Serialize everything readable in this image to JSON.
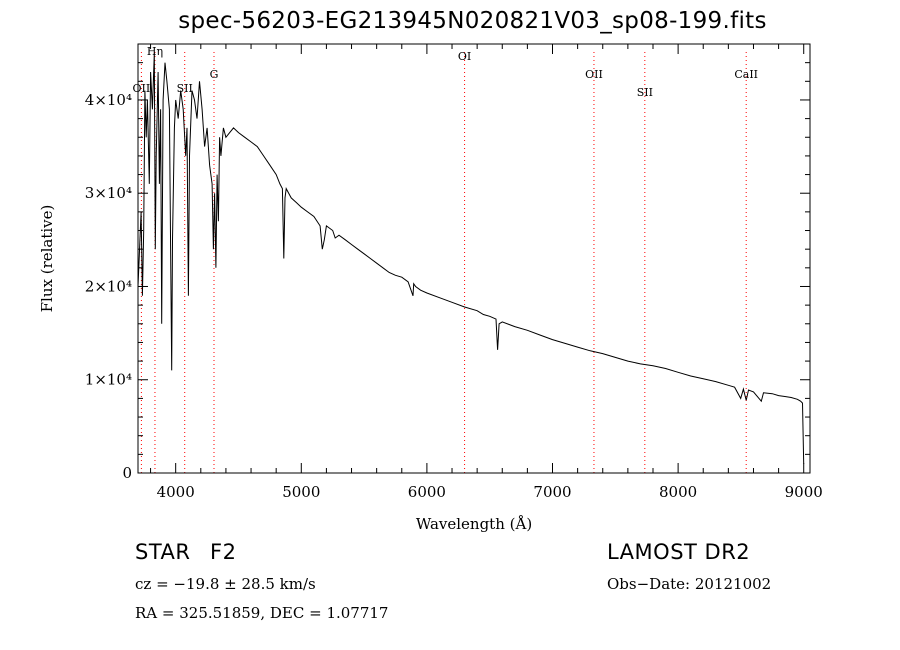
{
  "chart_data": {
    "type": "line",
    "title": "spec-56203-EG213945N020821V03_sp08-199.fits",
    "xlabel": "Wavelength (Å)",
    "ylabel": "Flux (relative)",
    "xlim": [
      3700,
      9050
    ],
    "ylim": [
      0,
      46000
    ],
    "x_ticks": [
      4000,
      5000,
      6000,
      7000,
      8000,
      9000
    ],
    "y_ticks": [
      {
        "value": 0,
        "label": "0"
      },
      {
        "value": 10000,
        "label": "1×10⁴"
      },
      {
        "value": 20000,
        "label": "2×10⁴"
      },
      {
        "value": 30000,
        "label": "3×10⁴"
      },
      {
        "value": 40000,
        "label": "4×10⁴"
      }
    ],
    "grid": false,
    "series": [
      {
        "color": "#000000",
        "x": [
          3700,
          3725,
          3735,
          3745,
          3755,
          3765,
          3775,
          3790,
          3800,
          3815,
          3830,
          3838,
          3845,
          3860,
          3870,
          3880,
          3889,
          3900,
          3915,
          3930,
          3950,
          3960,
          3968,
          3975,
          3990,
          4000,
          4020,
          4040,
          4060,
          4080,
          4090,
          4101,
          4110,
          4130,
          4150,
          4170,
          4190,
          4210,
          4230,
          4250,
          4270,
          4290,
          4300,
          4310,
          4320,
          4330,
          4340,
          4350,
          4360,
          4380,
          4400,
          4430,
          4460,
          4500,
          4550,
          4600,
          4650,
          4700,
          4750,
          4800,
          4830,
          4850,
          4861,
          4870,
          4880,
          4920,
          4960,
          5000,
          5050,
          5100,
          5150,
          5167,
          5183,
          5200,
          5250,
          5270,
          5300,
          5350,
          5400,
          5450,
          5500,
          5550,
          5600,
          5650,
          5700,
          5750,
          5800,
          5850,
          5889,
          5895,
          5910,
          5950,
          6000,
          6100,
          6200,
          6300,
          6400,
          6450,
          6500,
          6550,
          6563,
          6575,
          6600,
          6700,
          6800,
          6900,
          7000,
          7100,
          7200,
          7300,
          7400,
          7500,
          7600,
          7700,
          7800,
          7900,
          8000,
          8100,
          8200,
          8300,
          8400,
          8450,
          8498,
          8520,
          8542,
          8560,
          8600,
          8662,
          8680,
          8750,
          8800,
          8850,
          8900,
          8950,
          8975,
          8990,
          9000
        ],
        "y": [
          20000,
          28000,
          19000,
          26000,
          41000,
          36000,
          40000,
          31000,
          43000,
          39000,
          45000,
          24000,
          34000,
          43000,
          31000,
          39000,
          16000,
          40000,
          44000,
          42000,
          39000,
          23000,
          11000,
          25000,
          37000,
          40000,
          38000,
          41000,
          39000,
          34000,
          37000,
          19000,
          34000,
          41000,
          40000,
          38000,
          42000,
          39000,
          35000,
          37000,
          33000,
          31000,
          24000,
          30000,
          22000,
          32000,
          27000,
          36000,
          34000,
          37000,
          36000,
          36500,
          37000,
          36500,
          36000,
          35500,
          35000,
          34000,
          33000,
          32000,
          31000,
          30500,
          23000,
          29500,
          30500,
          29500,
          29000,
          28500,
          28000,
          27500,
          26500,
          24000,
          25000,
          26500,
          26000,
          25200,
          25500,
          25000,
          24500,
          24000,
          23500,
          23000,
          22500,
          22000,
          21500,
          21200,
          21000,
          20500,
          19000,
          20300,
          20000,
          19600,
          19300,
          18800,
          18300,
          17800,
          17400,
          17000,
          16800,
          16500,
          13200,
          16000,
          16200,
          15700,
          15300,
          14800,
          14300,
          13900,
          13500,
          13100,
          12800,
          12400,
          12000,
          11700,
          11500,
          11200,
          10800,
          10400,
          10100,
          9800,
          9400,
          9200,
          8000,
          9000,
          7800,
          8900,
          8700,
          7700,
          8600,
          8500,
          8300,
          8200,
          8100,
          7900,
          7700,
          7500,
          1000
        ]
      }
    ],
    "lines": [
      {
        "label": "Hη",
        "wavelength": 3835
      },
      {
        "label": "OII",
        "wavelength": 3727
      },
      {
        "label": "SII",
        "wavelength": 4072
      },
      {
        "label": "G",
        "wavelength": 4305
      },
      {
        "label": "OI",
        "wavelength": 6300
      },
      {
        "label": "OII",
        "wavelength": 7330
      },
      {
        "label": "SII",
        "wavelength": 7735
      },
      {
        "label": "CaII",
        "wavelength": 8542
      }
    ],
    "colors": {
      "axes": "#000000",
      "spectrum": "#000000",
      "line_markers": "#ff0000"
    }
  },
  "info": {
    "object_class": "STAR",
    "subclass": "F2",
    "cz": "cz = −19.8 ± 28.5 km/s",
    "coords": "RA = 325.51859, DEC =   1.07717",
    "survey": "LAMOST DR2",
    "obs_date": "Obs−Date: 20121002"
  }
}
